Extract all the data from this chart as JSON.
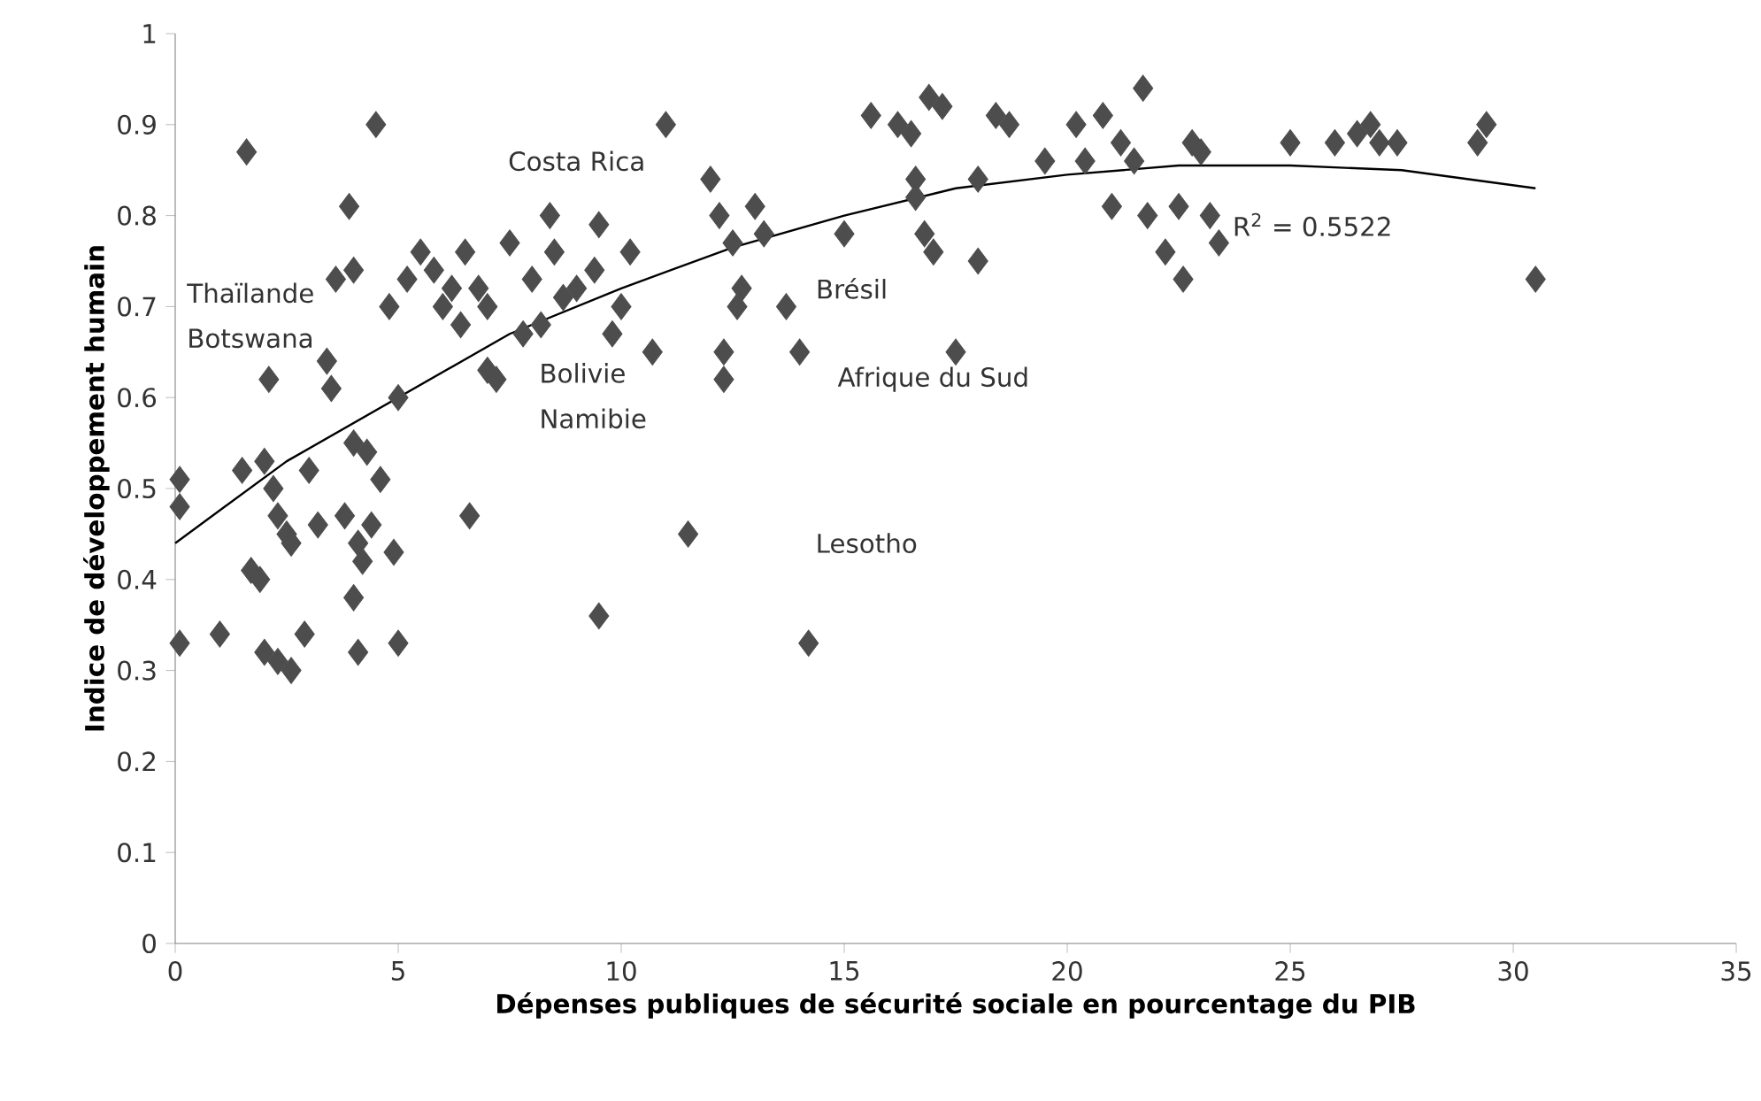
{
  "chart_data": {
    "type": "scatter",
    "xlabel": "Dépenses publiques de sécurité sociale  en pourcentage du PIB",
    "ylabel": "Indice de développement humain",
    "xlim": [
      0,
      35
    ],
    "xticks": [
      0,
      5,
      10,
      15,
      20,
      25,
      30,
      35
    ],
    "ylim": [
      0,
      1
    ],
    "yticks": [
      0,
      0.1,
      0.2,
      0.3,
      0.4,
      0.5,
      0.6,
      0.7,
      0.8,
      0.9,
      1
    ],
    "grid": false,
    "series": [
      {
        "color": "#4d4d4d",
        "marker": "diamond",
        "x": [
          0.1,
          0.1,
          0.1,
          1.0,
          1.6,
          1.5,
          1.7,
          1.9,
          2.0,
          2.2,
          2.3,
          2.5,
          2.0,
          2.3,
          2.6,
          2.9,
          2.1,
          2.6,
          3.0,
          3.2,
          3.4,
          3.5,
          3.6,
          3.8,
          3.9,
          4.0,
          4.0,
          4.1,
          4.0,
          4.1,
          4.2,
          4.3,
          4.4,
          4.5,
          4.6,
          4.8,
          4.9,
          5.0,
          5.0,
          5.2,
          5.5,
          5.8,
          6.0,
          6.2,
          6.4,
          6.5,
          6.6,
          6.8,
          7.0,
          7.0,
          7.2,
          7.5,
          7.8,
          8.0,
          8.4,
          8.5,
          8.7,
          8.2,
          9.0,
          9.4,
          9.5,
          9.5,
          9.8,
          10.0,
          10.2,
          10.7,
          11.0,
          11.5,
          12.0,
          12.2,
          12.3,
          12.3,
          12.5,
          12.7,
          12.6,
          13.0,
          13.2,
          13.7,
          14.0,
          14.2,
          15.0,
          15.6,
          16.2,
          16.5,
          16.6,
          16.6,
          16.8,
          16.9,
          17.0,
          17.2,
          17.5,
          18.0,
          18.0,
          18.4,
          18.7,
          19.5,
          20.2,
          20.4,
          20.8,
          21.0,
          21.2,
          21.5,
          21.7,
          21.8,
          22.2,
          22.5,
          22.6,
          22.8,
          23.0,
          23.2,
          23.4,
          25.0,
          26.0,
          26.5,
          26.8,
          27.0,
          27.4,
          29.2,
          29.4,
          30.5
        ],
        "values": [
          0.51,
          0.48,
          0.33,
          0.34,
          0.87,
          0.52,
          0.41,
          0.4,
          0.53,
          0.5,
          0.47,
          0.45,
          0.32,
          0.31,
          0.3,
          0.34,
          0.62,
          0.44,
          0.52,
          0.46,
          0.64,
          0.61,
          0.73,
          0.47,
          0.81,
          0.74,
          0.55,
          0.44,
          0.38,
          0.32,
          0.42,
          0.54,
          0.46,
          0.9,
          0.51,
          0.7,
          0.43,
          0.33,
          0.6,
          0.73,
          0.76,
          0.74,
          0.7,
          0.72,
          0.68,
          0.76,
          0.47,
          0.72,
          0.63,
          0.7,
          0.62,
          0.77,
          0.67,
          0.73,
          0.8,
          0.76,
          0.71,
          0.68,
          0.72,
          0.74,
          0.79,
          0.36,
          0.67,
          0.7,
          0.76,
          0.65,
          0.9,
          0.45,
          0.84,
          0.8,
          0.65,
          0.62,
          0.77,
          0.72,
          0.7,
          0.81,
          0.78,
          0.7,
          0.65,
          0.33,
          0.78,
          0.91,
          0.9,
          0.89,
          0.84,
          0.82,
          0.78,
          0.93,
          0.76,
          0.92,
          0.65,
          0.75,
          0.84,
          0.91,
          0.9,
          0.86,
          0.9,
          0.86,
          0.91,
          0.81,
          0.88,
          0.86,
          0.94,
          0.8,
          0.76,
          0.81,
          0.73,
          0.88,
          0.87,
          0.8,
          0.77,
          0.88,
          0.88,
          0.89,
          0.9,
          0.88,
          0.88,
          0.88,
          0.9,
          0.73
        ]
      },
      {
        "type": "line",
        "color": "#000000",
        "marker": "none",
        "line_style": "solid",
        "x": [
          0,
          2.5,
          5,
          7.5,
          10,
          12.5,
          15,
          17.5,
          20,
          22.5,
          25,
          27.5,
          30.5
        ],
        "values": [
          0.44,
          0.53,
          0.6,
          0.67,
          0.72,
          0.765,
          0.8,
          0.83,
          0.845,
          0.855,
          0.855,
          0.85,
          0.83
        ]
      }
    ],
    "annotations": [
      "Thaïlande",
      "Botswana",
      "Bolivie",
      "Namibie",
      "Costa Rica",
      "Brésil",
      "Afrique du Sud",
      "Lesotho",
      "R$^{2}$ = 0.5522"
    ]
  }
}
